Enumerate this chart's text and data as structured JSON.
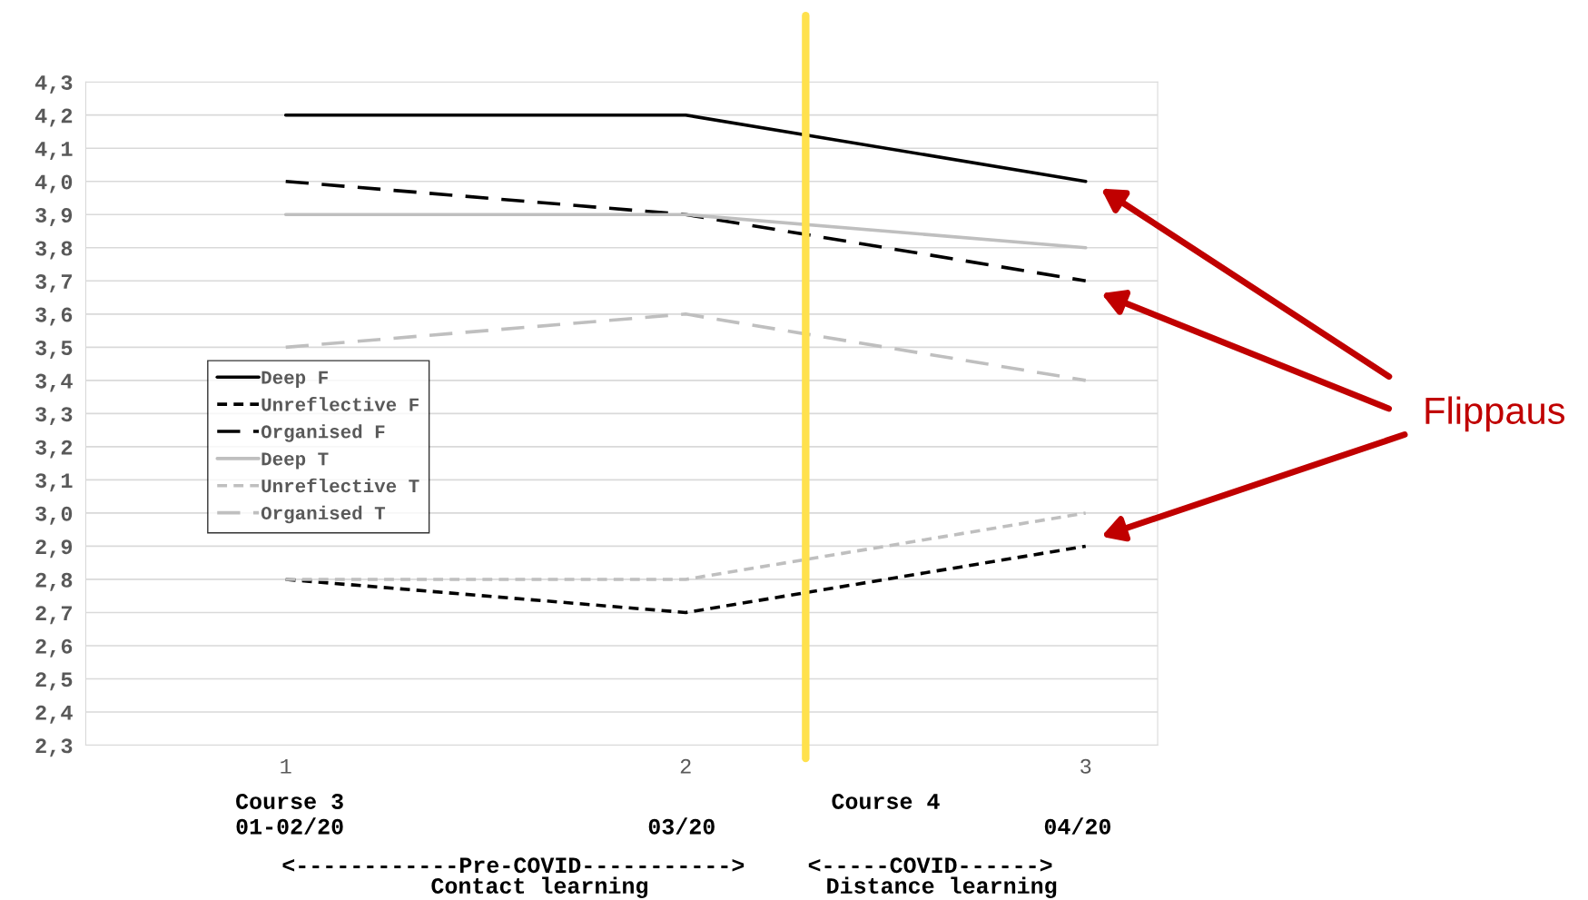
{
  "chart_data": {
    "type": "line",
    "x": [
      1,
      2,
      3
    ],
    "series": [
      {
        "name": "Deep F",
        "color": "#000000",
        "line_style": "solid",
        "values": [
          4.2,
          4.2,
          4.0
        ]
      },
      {
        "name": "Unreflective F",
        "color": "#000000",
        "line_style": "dotted",
        "values": [
          2.8,
          2.7,
          2.9
        ]
      },
      {
        "name": "Organised F",
        "color": "#000000",
        "line_style": "dashed",
        "values": [
          4.0,
          3.9,
          3.7
        ]
      },
      {
        "name": "Deep T",
        "color": "#bfbfbf",
        "line_style": "solid",
        "values": [
          3.9,
          3.9,
          3.8
        ]
      },
      {
        "name": "Unreflective T",
        "color": "#bfbfbf",
        "line_style": "dotted",
        "values": [
          2.8,
          2.8,
          3.0
        ]
      },
      {
        "name": "Organised T",
        "color": "#bfbfbf",
        "line_style": "dashed",
        "values": [
          3.5,
          3.6,
          3.4
        ]
      }
    ],
    "xlim": [
      0.5,
      3.18
    ],
    "xticks": [
      1,
      2,
      3
    ],
    "ylim": [
      2.3,
      4.3
    ],
    "yticks": [
      {
        "value": 2.3,
        "label": "2,3"
      },
      {
        "value": 2.4,
        "label": "2,4"
      },
      {
        "value": 2.5,
        "label": "2,5"
      },
      {
        "value": 2.6,
        "label": "2,6"
      },
      {
        "value": 2.7,
        "label": "2,7"
      },
      {
        "value": 2.8,
        "label": "2,8"
      },
      {
        "value": 2.9,
        "label": "2,9"
      },
      {
        "value": 3.0,
        "label": "3,0"
      },
      {
        "value": 3.1,
        "label": "3,1"
      },
      {
        "value": 3.2,
        "label": "3,2"
      },
      {
        "value": 3.3,
        "label": "3,3"
      },
      {
        "value": 3.4,
        "label": "3,4"
      },
      {
        "value": 3.5,
        "label": "3,5"
      },
      {
        "value": 3.6,
        "label": "3,6"
      },
      {
        "value": 3.7,
        "label": "3,7"
      },
      {
        "value": 3.8,
        "label": "3,8"
      },
      {
        "value": 3.9,
        "label": "3,9"
      },
      {
        "value": 4.0,
        "label": "4,0"
      },
      {
        "value": 4.1,
        "label": "4,1"
      },
      {
        "value": 4.2,
        "label": "4,2"
      },
      {
        "value": 4.3,
        "label": "4,3"
      }
    ],
    "grid": "y",
    "legend": "center left",
    "marker": "none",
    "ref_lines": [
      {
        "axis": "x",
        "value": 2.3,
        "color": "#ffe14d"
      }
    ],
    "annotations": [
      "Flippaus",
      "Course 3",
      "01-02/20",
      "03/20",
      "Course 4",
      "04/20",
      "<------------Pre-COVID----------->",
      "<-----COVID------>",
      "Contact learning",
      "Distance learning"
    ]
  }
}
